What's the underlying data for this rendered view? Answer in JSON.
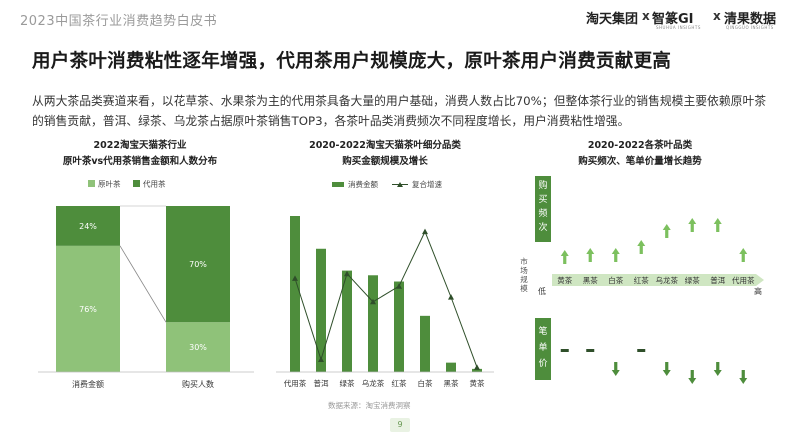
{
  "header": {
    "report_title": "2023中国茶行业消费趋势白皮书",
    "brand1": "淘天集团",
    "brand1_sub": "",
    "brand2": "智篆GI",
    "brand2_sub": "SHUHUA INSIGHTS",
    "brand3": "清果数据",
    "brand3_sub": "QINGGUO INSIGHTS",
    "sep": "x"
  },
  "headline": "用户茶叶消费粘性逐年增强，代用茶用户规模庞大，原叶茶用户消费贡献更高",
  "intro": "从两大茶品类赛道来看，以花草茶、水果茶为主的代用茶具备大量的用户基础，消费人数占比70%；但整体茶行业的销售规模主要依赖原叶茶的销售贡献，普洱、绿茶、乌龙茶占据原叶茶销售TOP3，各茶叶品类消费频次不同程度增长，用户消费粘性增强。",
  "page_number": "9",
  "source": "数据来源：淘宝消费洞察",
  "colors": {
    "dark_green": "#4e8d3c",
    "light_green": "#8fc279",
    "arrow_green": "#7cc05e",
    "dark": "#2f4f2a"
  },
  "chart_data": [
    {
      "type": "bar",
      "stacked": true,
      "title_line1": "2022淘宝天猫茶行业",
      "title_line2": "原叶茶vs代用茶销售金额和人数分布",
      "categories": [
        "消费金额",
        "购买人数"
      ],
      "series": [
        {
          "name": "原叶茶",
          "values": [
            76,
            30
          ],
          "labels": [
            "76%",
            "30%"
          ]
        },
        {
          "name": "代用茶",
          "values": [
            24,
            70
          ],
          "labels": [
            "24%",
            "70%"
          ]
        }
      ],
      "ylim": [
        0,
        100
      ],
      "legend": "top"
    },
    {
      "type": "bar",
      "title_line1": "2020-2022淘宝天猫茶叶细分品类",
      "title_line2": "购买金额规模及增长",
      "categories": [
        "代用茶",
        "普洱",
        "绿茶",
        "乌龙茶",
        "红茶",
        "白茶",
        "黑茶",
        "黄茶"
      ],
      "series": [
        {
          "name": "消费金额",
          "type": "bar",
          "values": [
            100,
            79,
            65,
            62,
            58,
            36,
            6,
            2
          ]
        },
        {
          "name": "复合增速",
          "type": "line",
          "values": [
            60,
            8,
            63,
            45,
            55,
            90,
            48,
            3
          ]
        }
      ],
      "legend": "top"
    },
    {
      "type": "table",
      "title_line1": "2020-2022各茶叶品类",
      "title_line2": "购买频次、笔单价量增长趋势",
      "categories": [
        "黄茶",
        "黑茶",
        "白茶",
        "红茶",
        "乌龙茶",
        "绿茶",
        "普洱",
        "代用茶"
      ],
      "axis_label": "市场规模",
      "axis_low": "低",
      "axis_high": "高",
      "row_top_label": "购买频次",
      "row_bottom_label": "笔单价",
      "frequency_trend": [
        "up",
        "up",
        "up",
        "up",
        "up",
        "up",
        "up",
        "up"
      ],
      "price_trend": [
        "flat",
        "flat",
        "down",
        "flat",
        "down",
        "down",
        "down",
        "down"
      ]
    }
  ]
}
